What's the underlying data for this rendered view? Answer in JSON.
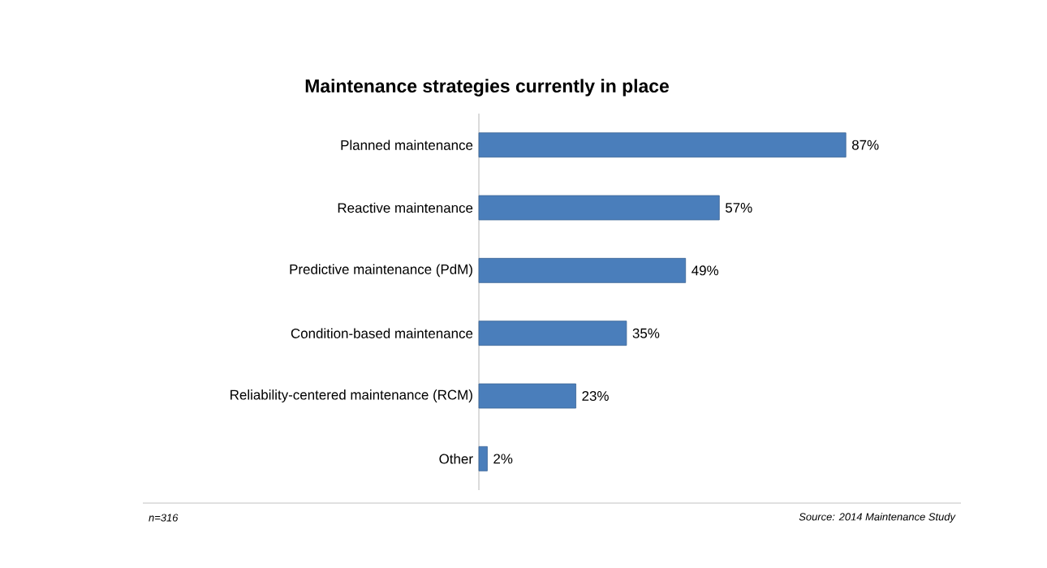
{
  "chart_data": {
    "type": "bar",
    "orientation": "horizontal",
    "title": "Maintenance strategies currently in place",
    "categories": [
      "Planned maintenance",
      "Reactive maintenance",
      "Predictive maintenance (PdM)",
      "Condition-based maintenance",
      "Reliability-centered maintenance (RCM)",
      "Other"
    ],
    "values": [
      87,
      57,
      49,
      35,
      23,
      2
    ],
    "value_labels": [
      "87%",
      "57%",
      "49%",
      "35%",
      "23%",
      "2%"
    ],
    "color": "#4a7ebb",
    "annotations": [
      "n=316",
      "Source: 2014 Maintenance Study"
    ]
  }
}
